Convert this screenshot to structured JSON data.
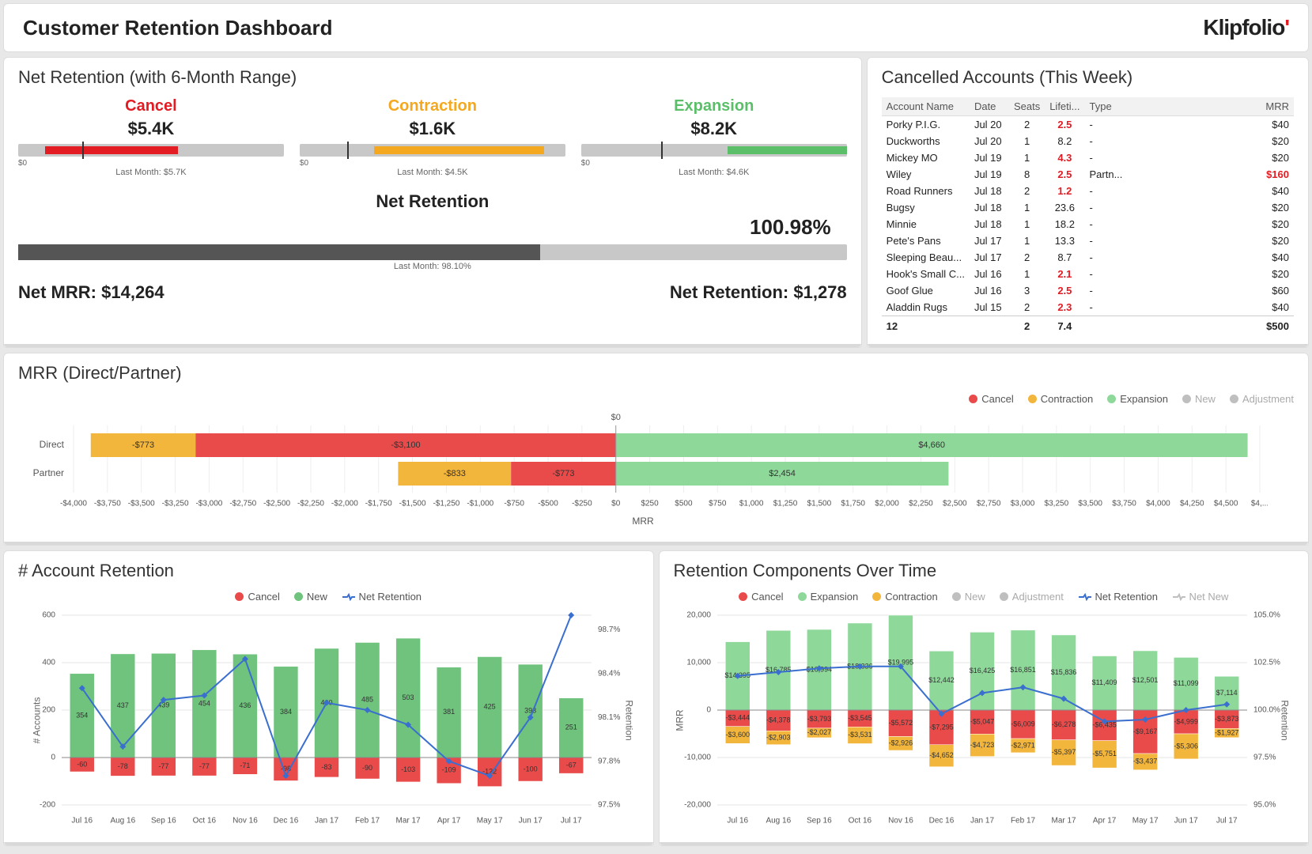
{
  "page": {
    "title": "Customer Retention Dashboard",
    "brand": "Klipfolio",
    "brand_accent_char": "'"
  },
  "colors": {
    "cancel": "#e94b4b",
    "contraction": "#f3b63d",
    "expansion": "#8ed89a",
    "new": "#bfbfbf",
    "adjustment": "#bfbfbf",
    "line": "#3a6fcf",
    "grid": "#e5e5e5",
    "track": "#c8c8c8",
    "bar_label_bg": "rgba(255,255,255,0)"
  },
  "netRetention": {
    "title": "Net Retention (with 6-Month Range)",
    "bullets": [
      {
        "label": "Cancel",
        "color": "#e31b23",
        "value": "$5.4K",
        "lastMonth": "Last Month: $5.7K",
        "range_start": 0.1,
        "range_end": 0.6,
        "marker": 0.24,
        "axis_min": "$0",
        "axis_max": ""
      },
      {
        "label": "Contraction",
        "color": "#f3a81f",
        "value": "$1.6K",
        "lastMonth": "Last Month: $4.5K",
        "range_start": 0.28,
        "range_end": 0.92,
        "marker": 0.18,
        "axis_min": "$0",
        "axis_max": ""
      },
      {
        "label": "Expansion",
        "color": "#5bbf6a",
        "value": "$8.2K",
        "lastMonth": "Last Month: $4.6K",
        "range_start": 0.55,
        "range_end": 1.0,
        "marker": 0.3,
        "axis_min": "$0",
        "axis_max": ""
      }
    ],
    "overall": {
      "label": "Net Retention",
      "value": "100.98%",
      "fill_pct": 0.63,
      "lastMonth": "Last Month: 98.10%"
    },
    "footer": {
      "netMRR_label": "Net MRR:",
      "netMRR_value": "$14,264",
      "netRet_label": "Net Retention:",
      "netRet_value": "$1,278"
    }
  },
  "cancelled": {
    "title": "Cancelled Accounts (This Week)",
    "columns": [
      "Account Name",
      "Date",
      "Seats",
      "Lifeti...",
      "Type",
      "MRR"
    ],
    "rows": [
      {
        "name": "Porky P.I.G.",
        "date": "Jul 20",
        "seats": 2,
        "life": "2.5",
        "life_red": true,
        "type": "-",
        "mrr": "$40"
      },
      {
        "name": "Duckworths",
        "date": "Jul 20",
        "seats": 1,
        "life": "8.2",
        "life_red": false,
        "type": "-",
        "mrr": "$20"
      },
      {
        "name": "Mickey MO",
        "date": "Jul 19",
        "seats": 1,
        "life": "4.3",
        "life_red": true,
        "type": "-",
        "mrr": "$20"
      },
      {
        "name": "Wiley",
        "date": "Jul 19",
        "seats": 8,
        "life": "2.5",
        "life_red": true,
        "type": "Partn...",
        "mrr": "$160",
        "mrr_red": true
      },
      {
        "name": "Road Runners",
        "date": "Jul 18",
        "seats": 2,
        "life": "1.2",
        "life_red": true,
        "type": "-",
        "mrr": "$40"
      },
      {
        "name": "Bugsy",
        "date": "Jul 18",
        "seats": 1,
        "life": "23.6",
        "life_red": false,
        "type": "-",
        "mrr": "$20"
      },
      {
        "name": "Minnie",
        "date": "Jul 18",
        "seats": 1,
        "life": "18.2",
        "life_red": false,
        "type": "-",
        "mrr": "$20"
      },
      {
        "name": "Pete's Pans",
        "date": "Jul 17",
        "seats": 1,
        "life": "13.3",
        "life_red": false,
        "type": "-",
        "mrr": "$20"
      },
      {
        "name": "Sleeping Beau...",
        "date": "Jul 17",
        "seats": 2,
        "life": "8.7",
        "life_red": false,
        "type": "-",
        "mrr": "$40"
      },
      {
        "name": "Hook's Small C...",
        "date": "Jul 16",
        "seats": 1,
        "life": "2.1",
        "life_red": true,
        "type": "-",
        "mrr": "$20"
      },
      {
        "name": "Goof Glue",
        "date": "Jul 16",
        "seats": 3,
        "life": "2.5",
        "life_red": true,
        "type": "-",
        "mrr": "$60"
      },
      {
        "name": "Aladdin Rugs",
        "date": "Jul 15",
        "seats": 2,
        "life": "2.3",
        "life_red": true,
        "type": "-",
        "mrr": "$40"
      }
    ],
    "total": {
      "count": "12",
      "seats": "2",
      "life": "7.4",
      "mrr": "$500"
    }
  },
  "mrrBar": {
    "title": "MRR (Direct/Partner)",
    "legend": [
      "Cancel",
      "Contraction",
      "Expansion",
      "New",
      "Adjustment"
    ],
    "legend_grey": [
      "New",
      "Adjustment"
    ],
    "x_min": -4000,
    "x_max": 4750,
    "x_step": 250,
    "rows": [
      {
        "label": "Direct",
        "segments": [
          {
            "kind": "Contraction",
            "from": -3873,
            "to": -3100,
            "text": "-$773"
          },
          {
            "kind": "Cancel",
            "from": -3100,
            "to": 0,
            "text": "-$3,100"
          },
          {
            "kind": "Expansion",
            "from": 0,
            "to": 4660,
            "text": "$4,660"
          }
        ]
      },
      {
        "label": "Partner",
        "segments": [
          {
            "kind": "Contraction",
            "from": -1606,
            "to": -773,
            "text": "-$833"
          },
          {
            "kind": "Cancel",
            "from": -773,
            "to": 0,
            "text": "-$773"
          },
          {
            "kind": "Expansion",
            "from": 0,
            "to": 2454,
            "text": "$2,454"
          }
        ]
      }
    ],
    "x_title": "MRR",
    "zero_label": "$0"
  },
  "acctRetention": {
    "title": "# Account Retention",
    "legend": [
      {
        "k": "Cancel",
        "c": "#e94b4b"
      },
      {
        "k": "New",
        "c": "#6fc37d"
      },
      {
        "k": "Net Retention",
        "c": "#3a6fcf",
        "line": true
      }
    ],
    "months": [
      "Jul 16",
      "Aug 16",
      "Sep 16",
      "Oct 16",
      "Nov 16",
      "Dec 16",
      "Jan 17",
      "Feb 17",
      "Mar 17",
      "Apr 17",
      "May 17",
      "Jun 17",
      "Jul 17"
    ],
    "new": [
      354,
      437,
      439,
      454,
      436,
      384,
      460,
      485,
      503,
      381,
      425,
      393,
      251
    ],
    "cancel": [
      -60,
      -78,
      -77,
      -77,
      -71,
      -98,
      -83,
      -90,
      -103,
      -109,
      -122,
      -100,
      -67
    ],
    "retention": [
      98.3,
      97.9,
      98.22,
      98.25,
      98.5,
      97.7,
      98.2,
      98.15,
      98.05,
      97.8,
      97.7,
      98.1,
      98.8
    ],
    "y_min": -200,
    "y_max": 600,
    "y_step": 200,
    "y2_min": 97.5,
    "y2_max": 98.8,
    "y2_step": 0.3,
    "y_label": "# Accounts",
    "y2_label": "Retention"
  },
  "retComponents": {
    "title": "Retention Components Over Time",
    "legend": [
      {
        "k": "Cancel",
        "c": "#e94b4b"
      },
      {
        "k": "Expansion",
        "c": "#8ed89a"
      },
      {
        "k": "Contraction",
        "c": "#f3b63d"
      },
      {
        "k": "New",
        "c": "#bfbfbf",
        "grey": true
      },
      {
        "k": "Adjustment",
        "c": "#bfbfbf",
        "grey": true
      },
      {
        "k": "Net Retention",
        "c": "#3a6fcf",
        "line": true
      },
      {
        "k": "Net New",
        "c": "#bfbfbf",
        "grey": true,
        "line": true
      }
    ],
    "months": [
      "Jul 16",
      "Aug 16",
      "Sep 16",
      "Oct 16",
      "Nov 16",
      "Dec 16",
      "Jan 17",
      "Feb 17",
      "Mar 17",
      "Apr 17",
      "May 17",
      "Jun 17",
      "Jul 17"
    ],
    "expansion": [
      14395,
      16785,
      16994,
      18336,
      19995,
      12442,
      16425,
      16851,
      15836,
      11409,
      12501,
      11099,
      7114
    ],
    "cancel": [
      -3444,
      -4378,
      -3793,
      -3545,
      -5572,
      -7295,
      -5047,
      -6009,
      -6278,
      -6435,
      -9167,
      -4999,
      -3873
    ],
    "contraction": [
      -3600,
      -2903,
      -2027,
      -3531,
      -2926,
      -4652,
      -4723,
      -2971,
      -5397,
      -5751,
      -3437,
      -5306,
      -1927
    ],
    "retention": [
      101.8,
      102.0,
      102.2,
      102.3,
      102.3,
      99.8,
      100.9,
      101.2,
      100.6,
      99.4,
      99.5,
      100.0,
      100.3
    ],
    "y_min": -20000,
    "y_max": 20000,
    "y_step": 10000,
    "y2_min": 95.0,
    "y2_max": 105.0,
    "y2_step": 2.5,
    "y_label": "MRR",
    "y2_label": "Retention"
  }
}
